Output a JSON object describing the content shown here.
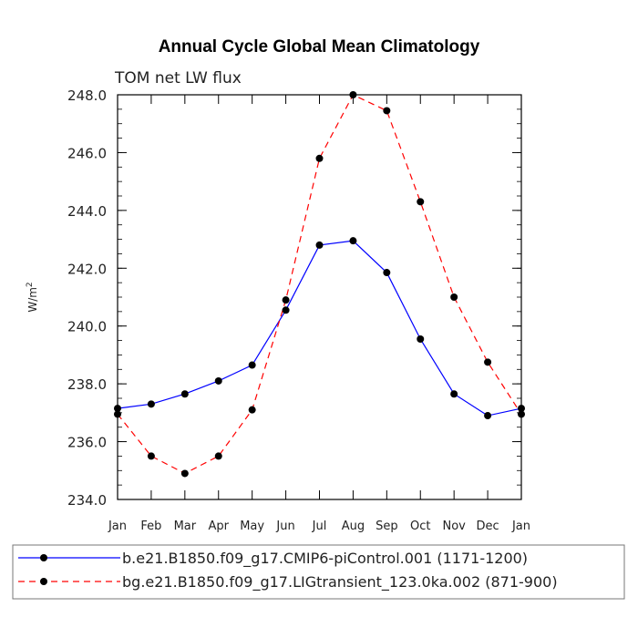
{
  "chart_data": {
    "type": "line",
    "title": "Annual Cycle Global Mean Climatology",
    "subtitle": "TOM net LW flux",
    "ylabel": "W/m",
    "ylabel_sup": "2",
    "xlabel": "",
    "ylim": [
      234.0,
      248.0
    ],
    "yticks": [
      "234.0",
      "236.0",
      "238.0",
      "240.0",
      "242.0",
      "244.0",
      "246.0",
      "248.0"
    ],
    "categories": [
      "Jan",
      "Feb",
      "Mar",
      "Apr",
      "May",
      "Jun",
      "Jul",
      "Aug",
      "Sep",
      "Oct",
      "Nov",
      "Dec",
      "Jan"
    ],
    "grid": false,
    "legend_position": "bottom",
    "series": [
      {
        "name": "b.e21.B1850.f09_g17.CMIP6-piControl.001 (1171-1200)",
        "color": "#0000ff",
        "dash": "solid",
        "values": [
          237.15,
          237.3,
          237.65,
          238.1,
          238.65,
          240.55,
          242.8,
          242.95,
          241.85,
          239.55,
          237.65,
          236.9,
          237.15
        ]
      },
      {
        "name": "bg.e21.B1850.f09_g17.LIGtransient_123.0ka.002 (871-900)",
        "color": "#ff0000",
        "dash": "dashed",
        "values": [
          236.95,
          235.5,
          234.9,
          235.5,
          237.1,
          240.9,
          245.8,
          248.0,
          247.45,
          244.3,
          241.0,
          238.75,
          236.95
        ]
      }
    ]
  }
}
